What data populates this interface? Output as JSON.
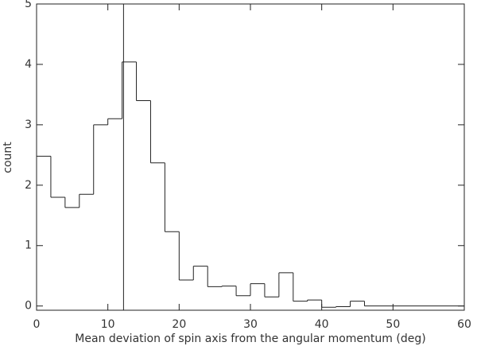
{
  "chart_data": {
    "type": "histogram",
    "xlabel": "Mean deviation of spin axis from the angular momentum (deg)",
    "ylabel": "count",
    "bins": [
      0,
      2,
      4,
      6,
      8,
      10,
      12,
      14,
      16,
      18,
      20,
      22,
      24,
      26,
      28,
      30,
      32,
      34,
      36,
      38,
      40,
      42,
      44,
      46
    ],
    "counts": [
      2.48,
      1.8,
      1.63,
      1.85,
      3.0,
      3.1,
      4.04,
      3.4,
      2.37,
      1.23,
      0.43,
      0.66,
      0.32,
      0.33,
      0.17,
      0.37,
      0.15,
      0.55,
      0.08,
      0.1,
      -0.02,
      -0.01,
      0.08
    ],
    "color": "#222222",
    "vline": 12.2,
    "xlim": [
      0,
      60
    ],
    "xticks": [
      0,
      10,
      20,
      30,
      40,
      50,
      60
    ],
    "ylim": [
      -0.07,
      5
    ],
    "yticks": [
      0,
      1,
      2,
      3,
      4,
      5
    ]
  }
}
